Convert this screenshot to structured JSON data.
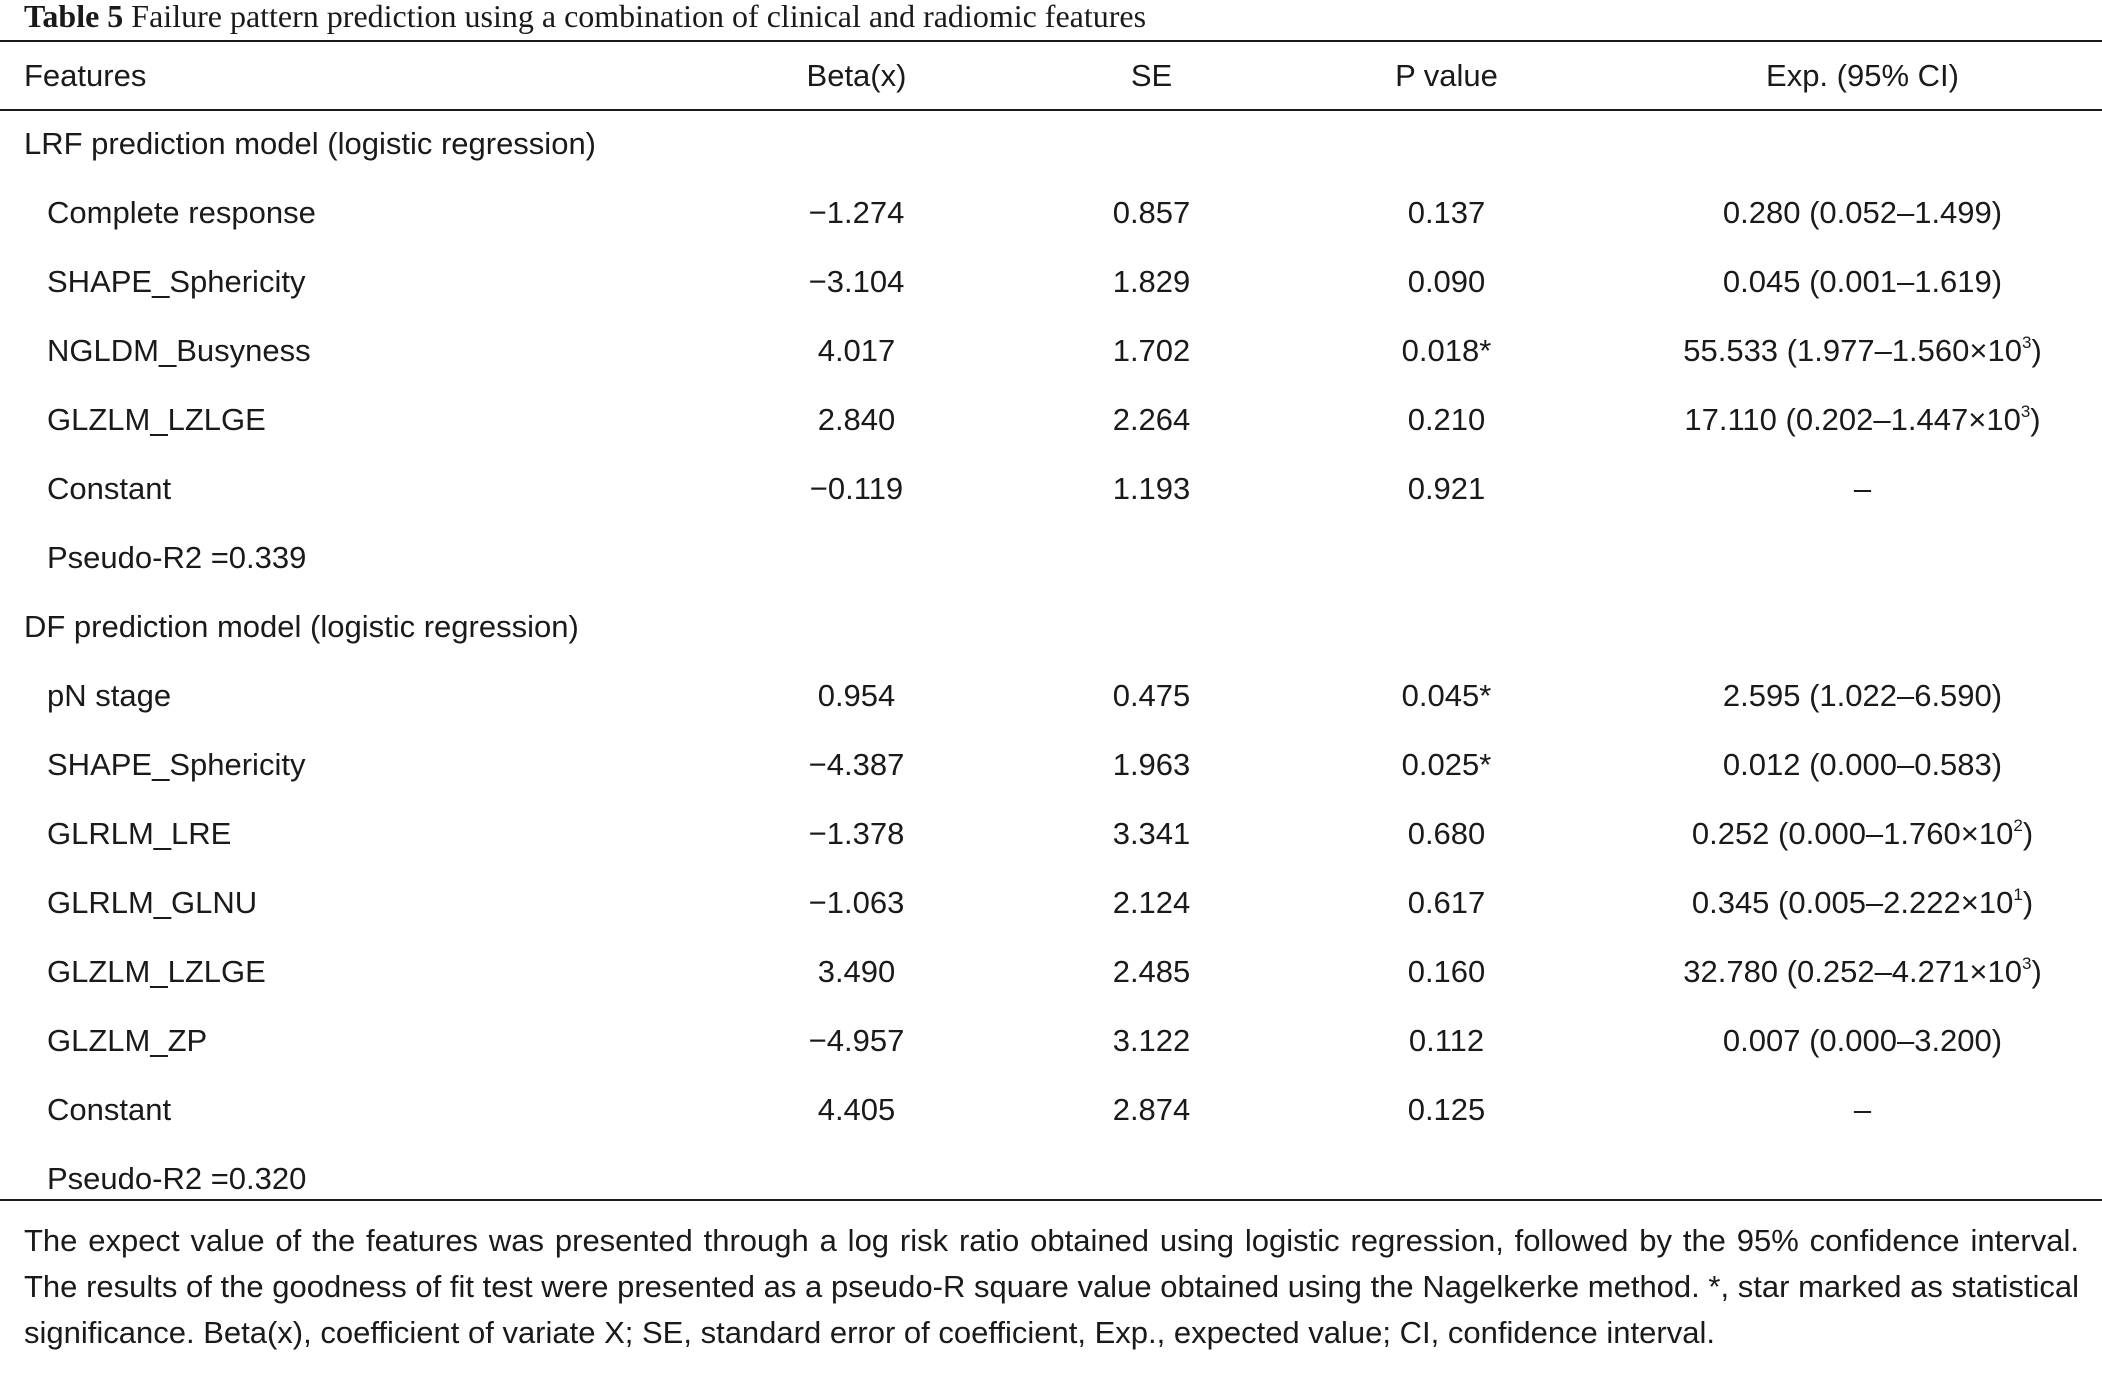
{
  "caption": {
    "label": "Table 5",
    "text": "Failure pattern prediction using a combination of clinical and radiomic features"
  },
  "table": {
    "headers": [
      "Features",
      "Beta(x)",
      "SE",
      "P value",
      "Exp. (95% CI)"
    ],
    "sections": [
      {
        "title": "LRF prediction model (logistic regression)",
        "rows": [
          {
            "feature": "Complete response",
            "beta": "−1.274",
            "se": "0.857",
            "p": "0.137",
            "exp": "0.280 (0.052–1.499)",
            "exp_sup": "",
            "exp_close": ""
          },
          {
            "feature": "SHAPE_Sphericity",
            "beta": "−3.104",
            "se": "1.829",
            "p": "0.090",
            "exp": "0.045 (0.001–1.619)",
            "exp_sup": "",
            "exp_close": ""
          },
          {
            "feature": "NGLDM_Busyness",
            "beta": "4.017",
            "se": "1.702",
            "p": "0.018*",
            "exp": "55.533 (1.977–1.560×10",
            "exp_sup": "3",
            "exp_close": ")"
          },
          {
            "feature": "GLZLM_LZLGE",
            "beta": "2.840",
            "se": "2.264",
            "p": "0.210",
            "exp": "17.110 (0.202–1.447×10",
            "exp_sup": "3",
            "exp_close": ")"
          },
          {
            "feature": "Constant",
            "beta": "−0.119",
            "se": "1.193",
            "p": "0.921",
            "exp": "–",
            "exp_sup": "",
            "exp_close": ""
          }
        ],
        "pseudo_r2": "Pseudo-R2 =0.339"
      },
      {
        "title": "DF prediction model (logistic regression)",
        "rows": [
          {
            "feature": "pN stage",
            "beta": "0.954",
            "se": "0.475",
            "p": "0.045*",
            "exp": "2.595 (1.022–6.590)",
            "exp_sup": "",
            "exp_close": ""
          },
          {
            "feature": "SHAPE_Sphericity",
            "beta": "−4.387",
            "se": "1.963",
            "p": "0.025*",
            "exp": "0.012 (0.000–0.583)",
            "exp_sup": "",
            "exp_close": ""
          },
          {
            "feature": "GLRLM_LRE",
            "beta": "−1.378",
            "se": "3.341",
            "p": "0.680",
            "exp": "0.252 (0.000–1.760×10",
            "exp_sup": "2",
            "exp_close": ")"
          },
          {
            "feature": "GLRLM_GLNU",
            "beta": "−1.063",
            "se": "2.124",
            "p": "0.617",
            "exp": "0.345 (0.005–2.222×10",
            "exp_sup": "1",
            "exp_close": ")"
          },
          {
            "feature": "GLZLM_LZLGE",
            "beta": "3.490",
            "se": "2.485",
            "p": "0.160",
            "exp": "32.780 (0.252–4.271×10",
            "exp_sup": "3",
            "exp_close": ")"
          },
          {
            "feature": "GLZLM_ZP",
            "beta": "−4.957",
            "se": "3.122",
            "p": "0.112",
            "exp": "0.007 (0.000–3.200)",
            "exp_sup": "",
            "exp_close": ""
          },
          {
            "feature": "Constant",
            "beta": "4.405",
            "se": "2.874",
            "p": "0.125",
            "exp": "–",
            "exp_sup": "",
            "exp_close": ""
          }
        ],
        "pseudo_r2": "Pseudo-R2 =0.320"
      }
    ]
  },
  "footnote": "The expect value of the features was presented through a log risk ratio obtained using logistic regression, followed by the 95% confidence interval. The results of the goodness of fit test were presented as a pseudo-R square value obtained using the Nagelkerke method. *, star marked as statistical significance. Beta(x), coefficient of variate X; SE, standard error of coefficient, Exp., expected value; CI, confidence interval."
}
